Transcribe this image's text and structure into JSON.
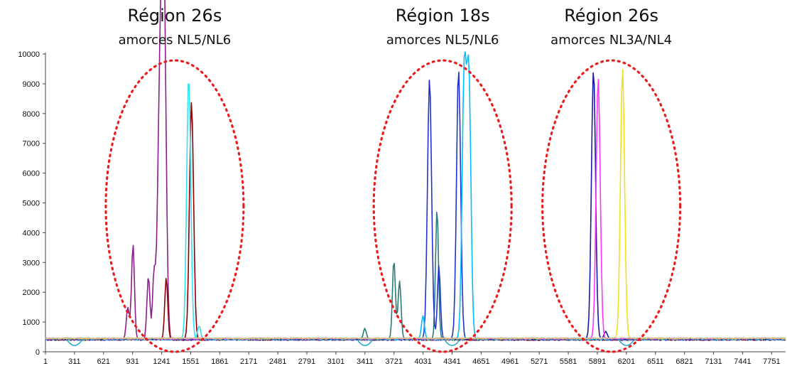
{
  "chart_data": {
    "type": "line",
    "title": "",
    "xlabel": "",
    "ylabel": "",
    "xlim": [
      1,
      7900
    ],
    "ylim": [
      0,
      10000
    ],
    "y_ticks": [
      0,
      1000,
      2000,
      3000,
      4000,
      5000,
      6000,
      7000,
      8000,
      9000,
      10000
    ],
    "x_ticks": [
      1,
      311,
      621,
      931,
      1241,
      1551,
      1861,
      2171,
      2481,
      2791,
      3101,
      3411,
      3721,
      4031,
      4341,
      4651,
      4961,
      5271,
      5581,
      5891,
      6201,
      6511,
      6821,
      7131,
      7441,
      7751
    ],
    "grid": false,
    "annotations": [
      {
        "title": "Région 26s",
        "subtitle": "amorces NL5/NL6",
        "x_center": 1380,
        "ellipse_color": "#e81e1e"
      },
      {
        "title": "Région 18s",
        "subtitle": "amorces NL5/NL6",
        "x_center": 4240,
        "ellipse_color": "#e81e1e"
      },
      {
        "title": "Région 26s",
        "subtitle": "amorces NL3A/NL4",
        "x_center": 6040,
        "ellipse_color": "#e81e1e"
      }
    ],
    "baseline": 430,
    "series": [
      {
        "color": "#8b1e8b",
        "peaks": [
          [
            880,
            1500
          ],
          [
            935,
            3650
          ],
          [
            1100,
            2550
          ],
          [
            1160,
            2600
          ],
          [
            1215,
            6300
          ],
          [
            1245,
            7000
          ],
          [
            1270,
            9400
          ]
        ]
      },
      {
        "color": "#8b0000",
        "peaks": [
          [
            1290,
            2500
          ],
          [
            1560,
            8400
          ]
        ]
      },
      {
        "color": "#33e0f0",
        "peaks": [
          [
            1530,
            9300
          ],
          [
            1640,
            900
          ]
        ]
      },
      {
        "color": "#2b7a78",
        "peaks": [
          [
            3410,
            800
          ],
          [
            3720,
            3100
          ],
          [
            3780,
            2400
          ],
          [
            4180,
            4800
          ]
        ]
      },
      {
        "color": "#2233cc",
        "peaks": [
          [
            4100,
            9200
          ],
          [
            4200,
            2900
          ],
          [
            4410,
            9500
          ]
        ]
      },
      {
        "color": "#00bfff",
        "peaks": [
          [
            4030,
            1200
          ],
          [
            4470,
            9300
          ],
          [
            4520,
            9100
          ]
        ]
      },
      {
        "color": "#1a1aa0",
        "peaks": [
          [
            5850,
            9500
          ],
          [
            5980,
            700
          ]
        ]
      },
      {
        "color": "#ff33ff",
        "peaks": [
          [
            5900,
            9200
          ]
        ]
      },
      {
        "color": "#f5e020",
        "peaks": [
          [
            6160,
            9500
          ]
        ]
      },
      {
        "color": "#c8b8a0",
        "peaks": []
      }
    ]
  }
}
